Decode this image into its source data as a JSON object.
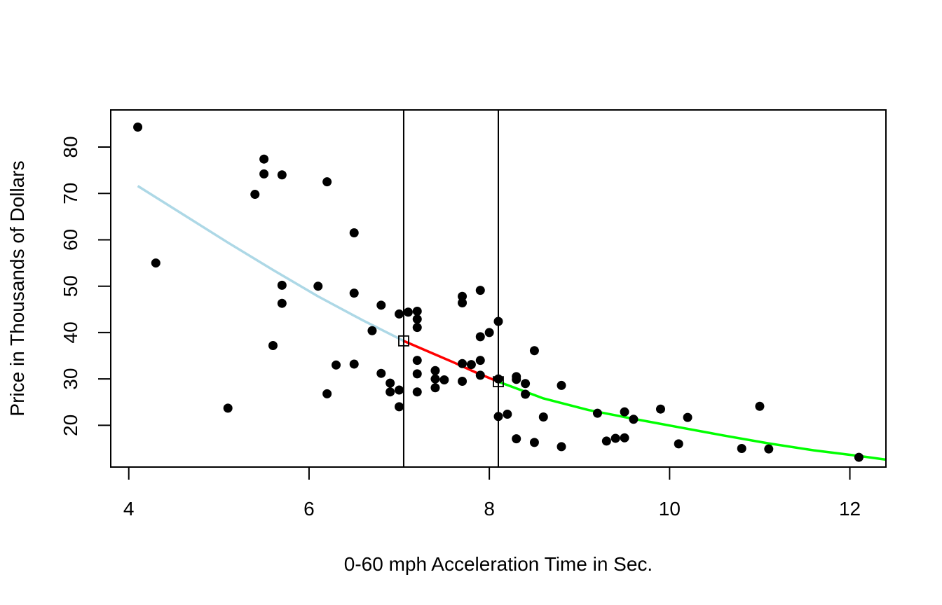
{
  "chart_data": {
    "type": "scatter",
    "title": "",
    "xlabel": "0-60 mph Acceleration Time in Sec.",
    "ylabel": "Price in Thousands of Dollars",
    "xlim": [
      3.8,
      12.4
    ],
    "ylim": [
      11,
      88
    ],
    "xticks": [
      4,
      6,
      8,
      10,
      12
    ],
    "yticks": [
      20,
      30,
      40,
      50,
      60,
      70,
      80
    ],
    "grid": false,
    "legend": "none",
    "colors": {
      "points": "#000000",
      "segment_1": "#add8e6",
      "segment_2": "#ff0000",
      "segment_3": "#00ff00",
      "knot_lines": "#000000"
    },
    "knots": [
      {
        "x": 7.05,
        "y": 38.2
      },
      {
        "x": 8.1,
        "y": 29.4
      }
    ],
    "series": [
      {
        "values": [
          [
            4.1,
            84.3
          ],
          [
            4.3,
            55.0
          ],
          [
            5.1,
            23.7
          ],
          [
            5.4,
            69.8
          ],
          [
            5.5,
            77.4
          ],
          [
            5.5,
            74.2
          ],
          [
            5.6,
            37.2
          ],
          [
            5.7,
            74.0
          ],
          [
            5.7,
            50.2
          ],
          [
            5.7,
            46.3
          ],
          [
            6.1,
            50.0
          ],
          [
            6.2,
            72.5
          ],
          [
            6.2,
            26.8
          ],
          [
            6.3,
            33.0
          ],
          [
            6.5,
            61.5
          ],
          [
            6.5,
            48.5
          ],
          [
            6.5,
            33.2
          ],
          [
            6.7,
            40.4
          ],
          [
            6.8,
            45.9
          ],
          [
            6.8,
            31.2
          ],
          [
            6.9,
            29.1
          ],
          [
            6.9,
            27.2
          ],
          [
            7.0,
            44.0
          ],
          [
            7.0,
            27.6
          ],
          [
            7.0,
            24.0
          ],
          [
            7.1,
            44.4
          ],
          [
            7.2,
            44.6
          ],
          [
            7.2,
            42.9
          ],
          [
            7.2,
            41.1
          ],
          [
            7.2,
            34.0
          ],
          [
            7.2,
            31.1
          ],
          [
            7.2,
            27.2
          ],
          [
            7.4,
            31.8
          ],
          [
            7.4,
            30.0
          ],
          [
            7.4,
            28.1
          ],
          [
            7.5,
            29.8
          ],
          [
            7.7,
            47.8
          ],
          [
            7.7,
            46.4
          ],
          [
            7.7,
            33.3
          ],
          [
            7.7,
            29.5
          ],
          [
            7.8,
            33.1
          ],
          [
            7.9,
            49.1
          ],
          [
            7.9,
            39.1
          ],
          [
            7.9,
            34.0
          ],
          [
            7.9,
            30.8
          ],
          [
            8.0,
            40.0
          ],
          [
            8.1,
            42.4
          ],
          [
            8.1,
            30.0
          ],
          [
            8.1,
            21.9
          ],
          [
            8.2,
            22.4
          ],
          [
            8.3,
            30.5
          ],
          [
            8.3,
            29.9
          ],
          [
            8.3,
            17.1
          ],
          [
            8.4,
            29.0
          ],
          [
            8.4,
            26.7
          ],
          [
            8.5,
            36.1
          ],
          [
            8.5,
            16.3
          ],
          [
            8.6,
            21.8
          ],
          [
            8.8,
            28.6
          ],
          [
            8.8,
            15.4
          ],
          [
            9.2,
            22.6
          ],
          [
            9.3,
            16.6
          ],
          [
            9.4,
            17.2
          ],
          [
            9.5,
            22.9
          ],
          [
            9.5,
            17.3
          ],
          [
            9.6,
            21.3
          ],
          [
            9.9,
            23.5
          ],
          [
            10.1,
            16.0
          ],
          [
            10.2,
            21.7
          ],
          [
            10.8,
            15.0
          ],
          [
            11.0,
            24.1
          ],
          [
            11.1,
            14.9
          ],
          [
            12.1,
            13.1
          ]
        ]
      }
    ],
    "fitted_curves": [
      {
        "color_key": "segment_1",
        "values": [
          [
            4.1,
            71.6
          ],
          [
            4.6,
            65.5
          ],
          [
            5.1,
            59.4
          ],
          [
            5.6,
            53.5
          ],
          [
            6.1,
            47.8
          ],
          [
            6.6,
            42.6
          ],
          [
            7.05,
            38.2
          ]
        ]
      },
      {
        "color_key": "segment_2",
        "values": [
          [
            7.05,
            38.2
          ],
          [
            7.3,
            36.1
          ],
          [
            7.6,
            33.6
          ],
          [
            7.85,
            31.4
          ],
          [
            8.1,
            29.4
          ]
        ]
      },
      {
        "color_key": "segment_3",
        "values": [
          [
            8.1,
            29.4
          ],
          [
            8.6,
            25.8
          ],
          [
            9.1,
            23.3
          ],
          [
            9.6,
            21.4
          ],
          [
            10.1,
            19.6
          ],
          [
            10.6,
            17.8
          ],
          [
            11.1,
            16.1
          ],
          [
            11.6,
            14.6
          ],
          [
            12.1,
            13.4
          ],
          [
            12.4,
            12.6
          ]
        ]
      }
    ]
  }
}
